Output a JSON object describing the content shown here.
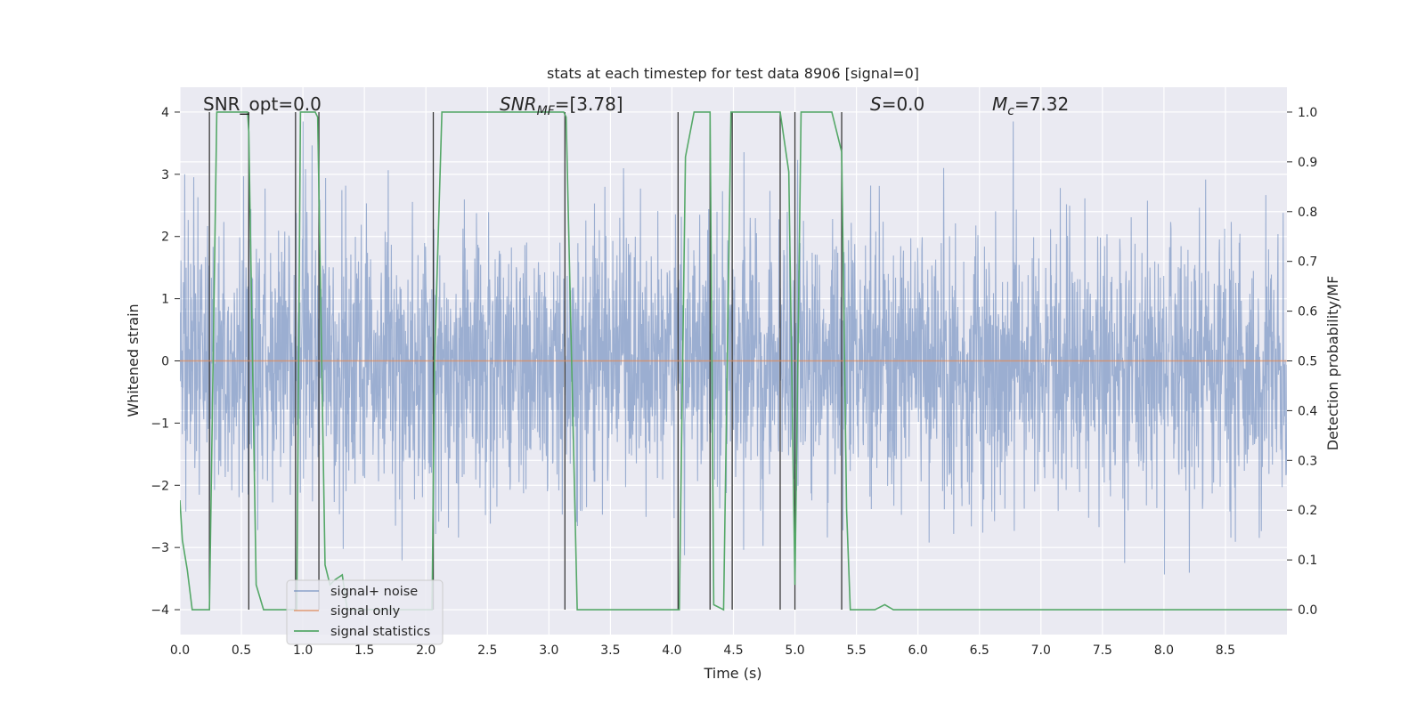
{
  "chart_data": {
    "type": "line",
    "title": "stats at each timestep for test data 8906 [signal=0]",
    "xlabel": "Time (s)",
    "ylabel": "Whitened strain",
    "y2label": "Detection probability/MF",
    "xlim": [
      0,
      9.0
    ],
    "ylim": [
      -4.4,
      4.4
    ],
    "y2lim": [
      -0.05,
      1.05
    ],
    "xticks": [
      "0.0",
      "0.5",
      "1.0",
      "1.5",
      "2.0",
      "2.5",
      "3.0",
      "3.5",
      "4.0",
      "4.5",
      "5.0",
      "5.5",
      "6.0",
      "6.5",
      "7.0",
      "7.5",
      "8.0",
      "8.5"
    ],
    "xtick_values": [
      0,
      0.5,
      1,
      1.5,
      2,
      2.5,
      3,
      3.5,
      4,
      4.5,
      5,
      5.5,
      6,
      6.5,
      7,
      7.5,
      8,
      8.5
    ],
    "yticks": [
      "−4",
      "−3",
      "−2",
      "−1",
      "0",
      "1",
      "2",
      "3",
      "4"
    ],
    "ytick_values": [
      -4,
      -3,
      -2,
      -1,
      0,
      1,
      2,
      3,
      4
    ],
    "y2ticks": [
      "0.0",
      "0.1",
      "0.2",
      "0.3",
      "0.4",
      "0.5",
      "0.6",
      "0.7",
      "0.8",
      "0.9",
      "1.0"
    ],
    "y2tick_values": [
      0,
      0.1,
      0.2,
      0.3,
      0.4,
      0.5,
      0.6,
      0.7,
      0.8,
      0.9,
      1.0
    ],
    "grid": true,
    "annotations": {
      "snr_opt": "SNR_opt=0.0",
      "snr_mf_prefix": "SNR",
      "snr_mf_sub": "MF",
      "snr_mf_value": "=[3.78]",
      "s_symbol": "S",
      "s_value": "=0.0",
      "mc_symbol": "M",
      "mc_sub": "c",
      "mc_value": "=7.32"
    },
    "legend": {
      "placement": "lower-left",
      "entries": [
        {
          "label": "signal+ noise",
          "color": "#4c72b0"
        },
        {
          "label": "signal only",
          "color": "#dd8452"
        },
        {
          "label": "signal statistics",
          "color": "#55a868"
        }
      ]
    },
    "noise": {
      "name": "signal+ noise",
      "color": "#4c72b0",
      "t_start": 0.0,
      "t_end": 9.0,
      "n_samples": 3200,
      "std": 1.05,
      "seed": 8906
    },
    "signal_only": {
      "name": "signal only",
      "color": "#dd8452",
      "x": [
        0.0,
        9.0
      ],
      "y": [
        0.0,
        0.0
      ]
    },
    "statistics": {
      "name": "signal statistics",
      "color": "#55a868",
      "axis": "right",
      "x": [
        0.0,
        0.02,
        0.06,
        0.1,
        0.2,
        0.24,
        0.3,
        0.33,
        0.55,
        0.56,
        0.62,
        0.68,
        0.95,
        0.98,
        1.02,
        1.1,
        1.12,
        1.18,
        1.22,
        1.26,
        1.32,
        1.36,
        2.05,
        2.07,
        2.13,
        3.12,
        3.14,
        3.23,
        4.06,
        4.11,
        4.18,
        4.31,
        4.34,
        4.42,
        4.48,
        4.56,
        4.88,
        4.95,
        5.0,
        5.05,
        5.3,
        5.38,
        5.42,
        5.45,
        5.65,
        5.73,
        5.8,
        5.95,
        6.2,
        9.0
      ],
      "y": [
        0.22,
        0.14,
        0.08,
        0.0,
        0.0,
        0.0,
        1.0,
        1.0,
        1.0,
        0.96,
        0.05,
        0.0,
        0.0,
        1.0,
        1.0,
        1.0,
        0.99,
        0.09,
        0.05,
        0.06,
        0.07,
        0.0,
        0.0,
        0.5,
        1.0,
        1.0,
        0.99,
        0.0,
        0.0,
        0.91,
        1.0,
        1.0,
        0.01,
        0.0,
        1.0,
        1.0,
        1.0,
        0.88,
        0.05,
        1.0,
        1.0,
        0.92,
        0.2,
        0.0,
        0.0,
        0.01,
        0.0,
        0.0,
        0.0,
        0.0
      ]
    },
    "detection_markers": [
      0.24,
      0.56,
      0.94,
      1.13,
      2.06,
      3.13,
      4.05,
      4.31,
      4.49,
      4.88,
      5.0,
      5.38
    ]
  }
}
